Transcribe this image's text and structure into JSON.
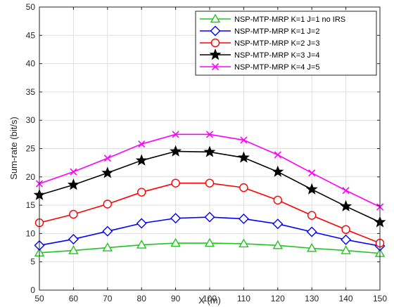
{
  "chart_data": {
    "type": "line",
    "title": "",
    "xlabel": "X (m)",
    "ylabel": "Sum-rate (bit/s)",
    "xlim": [
      50,
      150
    ],
    "ylim": [
      0,
      50
    ],
    "xticks": [
      50,
      60,
      70,
      80,
      90,
      100,
      110,
      120,
      130,
      140,
      150
    ],
    "yticks": [
      0,
      5,
      10,
      15,
      20,
      25,
      30,
      35,
      40,
      45,
      50
    ],
    "grid": true,
    "legend_position": "top-right",
    "x": [
      50,
      60,
      70,
      80,
      90,
      100,
      110,
      120,
      130,
      140,
      150
    ],
    "series": [
      {
        "name": "NSP-MTP-MRP K=1 J=1 no IRS",
        "color": "#22c322",
        "marker": "triangle",
        "values": [
          6.6,
          7.0,
          7.5,
          8.0,
          8.3,
          8.3,
          8.2,
          7.9,
          7.4,
          7.0,
          6.5
        ]
      },
      {
        "name": "NSP-MTP-MRP K=1 J=2",
        "color": "#0000ff",
        "marker": "diamond",
        "values": [
          7.9,
          9.0,
          10.4,
          11.8,
          12.7,
          12.9,
          12.6,
          11.7,
          10.3,
          8.9,
          7.8
        ]
      },
      {
        "name": "NSP-MTP-MRP K=2 J=3",
        "color": "#ff0000",
        "marker": "circle",
        "values": [
          11.9,
          13.4,
          15.2,
          17.3,
          18.9,
          18.9,
          18.1,
          15.9,
          13.2,
          10.7,
          8.3
        ]
      },
      {
        "name": "NSP-MTP-MRP K=3 J=4",
        "color": "#000000",
        "marker": "star",
        "values": [
          16.8,
          18.6,
          20.7,
          22.9,
          24.5,
          24.4,
          23.4,
          20.9,
          17.8,
          14.8,
          12.0
        ]
      },
      {
        "name": "NSP-MTP-MRP K=4 J=5",
        "color": "#ff00ff",
        "marker": "x",
        "values": [
          18.8,
          20.9,
          23.3,
          25.8,
          27.5,
          27.5,
          26.5,
          23.9,
          20.7,
          17.6,
          14.7
        ]
      }
    ]
  }
}
